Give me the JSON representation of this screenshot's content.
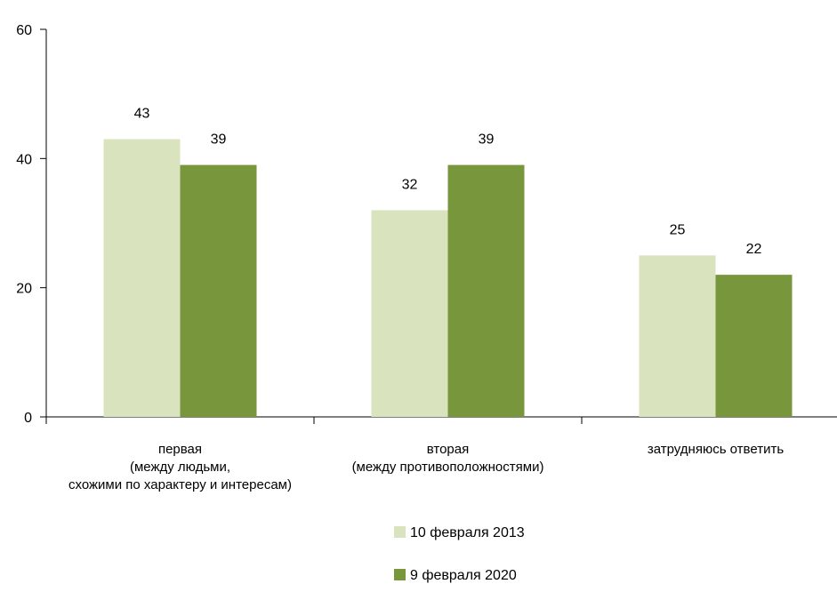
{
  "chart_data": {
    "type": "bar",
    "categories": [
      [
        "первая",
        "(между людьми,",
        "схожими по характеру и интересам)"
      ],
      [
        "вторая",
        "(между противоположностями)"
      ],
      [
        "затрудняюсь ответить"
      ]
    ],
    "series": [
      {
        "name": "10 февраля 2013",
        "values": [
          43,
          32,
          25
        ],
        "color": "#d9e4bf"
      },
      {
        "name": "9 февраля 2020",
        "values": [
          39,
          39,
          22
        ],
        "color": "#78963c"
      }
    ],
    "ylim": [
      0,
      60
    ],
    "yticks": [
      0,
      20,
      40,
      60
    ],
    "grid": false,
    "legend_position": "bottom-center"
  }
}
